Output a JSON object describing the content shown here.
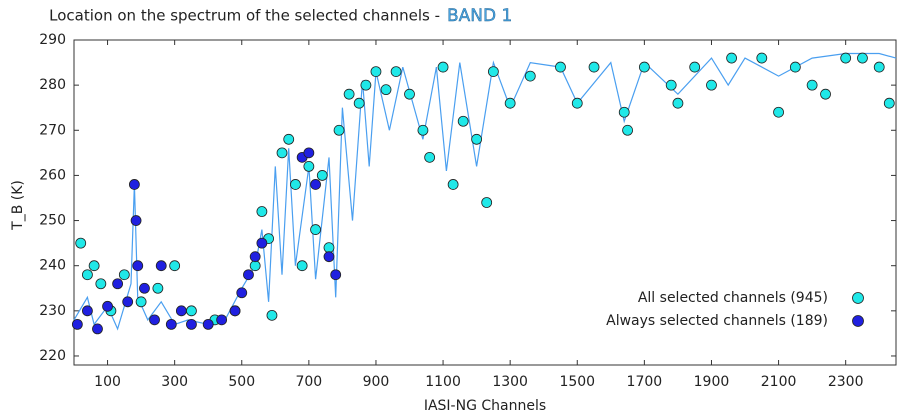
{
  "chart_data": {
    "type": "scatter",
    "title": "Location on the spectrum of the selected channels  -",
    "band_label": "BAND 1",
    "x_label": "IASI-NG Channels",
    "y_label": "T_B (K)",
    "xlim": [
      0,
      2450
    ],
    "ylim": [
      218,
      290
    ],
    "xticks": [
      100,
      300,
      500,
      700,
      900,
      1100,
      1300,
      1500,
      1700,
      1900,
      2100,
      2300
    ],
    "yticks": [
      220,
      230,
      240,
      250,
      260,
      270,
      280,
      290
    ],
    "legend": "lower right",
    "spectrum": {
      "color": "#4a9ff0",
      "x": [
        0,
        40,
        60,
        100,
        130,
        170,
        180,
        190,
        220,
        260,
        300,
        340,
        400,
        450,
        500,
        540,
        560,
        580,
        600,
        620,
        640,
        660,
        700,
        720,
        760,
        780,
        800,
        830,
        860,
        880,
        900,
        940,
        980,
        1040,
        1080,
        1110,
        1150,
        1200,
        1250,
        1300,
        1360,
        1450,
        1500,
        1600,
        1640,
        1700,
        1800,
        1900,
        1950,
        2000,
        2100,
        2200,
        2300,
        2400,
        2450
      ],
      "values": [
        228,
        233,
        227,
        231,
        226,
        236,
        258,
        233,
        228,
        232,
        227,
        228,
        227,
        228,
        235,
        240,
        248,
        232,
        262,
        238,
        266,
        240,
        262,
        237,
        264,
        233,
        275,
        250,
        281,
        262,
        283,
        270,
        284,
        268,
        284,
        261,
        285,
        262,
        285,
        275,
        285,
        284,
        276,
        285,
        272,
        285,
        278,
        286,
        280,
        286,
        282,
        286,
        287,
        287,
        286
      ]
    },
    "series": [
      {
        "name": "All selected channels (945)",
        "color": "#20e8e8",
        "x": [
          20,
          40,
          60,
          80,
          110,
          150,
          200,
          250,
          300,
          350,
          420,
          480,
          540,
          560,
          580,
          590,
          620,
          640,
          660,
          680,
          700,
          720,
          740,
          760,
          790,
          820,
          850,
          870,
          900,
          930,
          960,
          1000,
          1040,
          1060,
          1100,
          1130,
          1160,
          1200,
          1230,
          1250,
          1300,
          1360,
          1450,
          1500,
          1550,
          1640,
          1650,
          1700,
          1780,
          1800,
          1850,
          1900,
          1960,
          2050,
          2100,
          2150,
          2200,
          2240,
          2300,
          2350,
          2400,
          2430
        ],
        "values": [
          245,
          238,
          240,
          236,
          230,
          238,
          232,
          235,
          240,
          230,
          228,
          230,
          240,
          252,
          246,
          229,
          265,
          268,
          258,
          240,
          262,
          248,
          260,
          244,
          270,
          278,
          276,
          280,
          283,
          279,
          283,
          278,
          270,
          264,
          284,
          258,
          272,
          268,
          254,
          283,
          276,
          282,
          284,
          276,
          284,
          274,
          270,
          284,
          280,
          276,
          284,
          280,
          286,
          286,
          274,
          284,
          280,
          278,
          286,
          286,
          284,
          276
        ]
      },
      {
        "name": "Always selected channels (189)",
        "color": "#2020e0",
        "x": [
          10,
          40,
          70,
          100,
          130,
          160,
          180,
          185,
          190,
          210,
          240,
          260,
          290,
          320,
          350,
          400,
          440,
          480,
          500,
          520,
          540,
          560,
          680,
          700,
          720,
          760,
          780
        ],
        "values": [
          227,
          230,
          226,
          231,
          236,
          232,
          258,
          250,
          240,
          235,
          228,
          240,
          227,
          230,
          227,
          227,
          228,
          230,
          234,
          238,
          242,
          245,
          264,
          265,
          258,
          242,
          238
        ]
      }
    ]
  }
}
